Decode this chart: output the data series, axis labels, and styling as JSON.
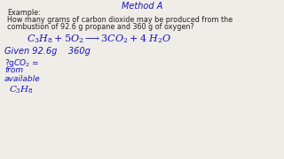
{
  "background_color": "#f0ede8",
  "title_top": "Method A",
  "example_label": "Example:",
  "question_line1": "How many grams of carbon dioxide may be produced from the",
  "question_line2": "combustion of 92.6 g propane and 360 g of oxygen?",
  "text_color": "#1515bb",
  "black_color": "#222222",
  "font_size_small": 5.8,
  "font_size_eq": 8.0,
  "font_size_given": 7.0,
  "font_size_ask": 6.5
}
